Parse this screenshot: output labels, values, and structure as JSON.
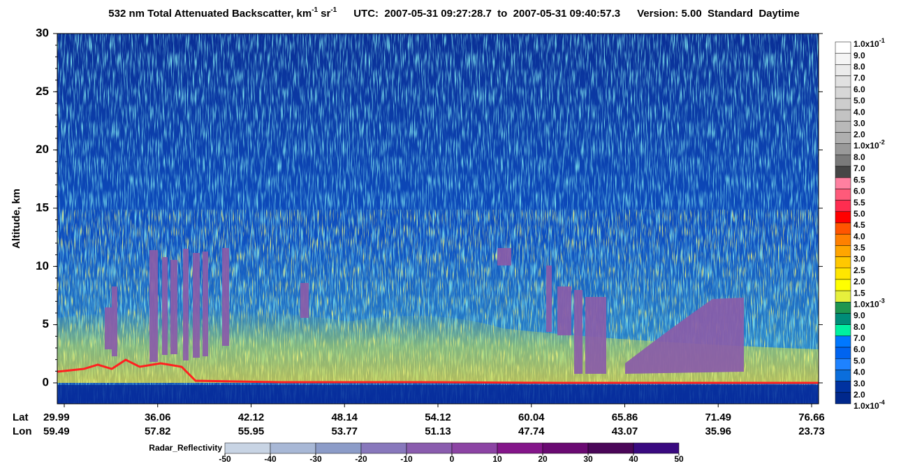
{
  "chart_data": {
    "type": "heatmap",
    "title_parts": [
      "532 nm Total Attenuated Backscatter, km",
      "-1",
      "sr",
      "-1"
    ],
    "time_info": "UTC:  2007-05-31 09:27:28.7  to  2007-05-31 09:40:57.3",
    "version_info": "Version: 5.00  Standard  Daytime",
    "y_label": "Altitude, km",
    "ylim": [
      -1.8,
      30
    ],
    "yticks": [
      0,
      5,
      10,
      15,
      20,
      25,
      30
    ],
    "x_row_labels": [
      "Lat",
      "Lon"
    ],
    "lat": [
      "29.99",
      "36.06",
      "42.12",
      "48.14",
      "54.12",
      "60.04",
      "65.86",
      "71.49",
      "76.66"
    ],
    "lon": [
      "59.49",
      "57.82",
      "55.95",
      "53.77",
      "51.13",
      "47.74",
      "43.07",
      "35.96",
      "23.73"
    ],
    "colorbar": {
      "labels": [
        {
          "label": "1.0x10",
          "exponent": "-1"
        },
        "9.0",
        "8.0",
        "7.0",
        "6.0",
        "5.0",
        "4.0",
        "3.0",
        "2.0",
        {
          "label": "1.0x10",
          "exponent": "-2"
        },
        "8.0",
        "7.0",
        "6.5",
        "6.0",
        "5.5",
        "5.0",
        "4.5",
        "4.0",
        "3.5",
        "3.0",
        "2.5",
        "2.0",
        "1.5",
        {
          "label": "1.0x10",
          "exponent": "-3"
        },
        "9.0",
        "8.0",
        "7.0",
        "6.0",
        "5.0",
        "4.0",
        "3.0",
        "2.0",
        {
          "label": "1.0x10",
          "exponent": "-4"
        }
      ],
      "colors": [
        "#ffffff",
        "#f5f5f5",
        "#ebebeb",
        "#e1e1e1",
        "#d7d7d7",
        "#cdcdcd",
        "#c3c3c3",
        "#b9b9b9",
        "#afafaf",
        "#999999",
        "#7a7a7a",
        "#464646",
        "#ff80a0",
        "#ff5a7a",
        "#ff2d50",
        "#ff0000",
        "#ff5500",
        "#ff8000",
        "#ffa500",
        "#ffc800",
        "#ffe600",
        "#ffff00",
        "#e6f03c",
        "#1e9650",
        "#008c78",
        "#00f0a0",
        "#0078ff",
        "#0064f0",
        "#1e82ff",
        "#0a6edc",
        "#0032a0",
        "#00288c"
      ]
    },
    "radar_colorbar": {
      "label": "Radar_Reflectivity",
      "ticks": [
        -50,
        -40,
        -30,
        -20,
        -10,
        0,
        10,
        20,
        30,
        40,
        50
      ],
      "colors": [
        "#c8d4e4",
        "#a8b8d6",
        "#8c9cc8",
        "#8878bc",
        "#8a5cae",
        "#8c44a4",
        "#84168a",
        "#6a0a72",
        "#4a0658",
        "#3a0a80"
      ]
    }
  }
}
